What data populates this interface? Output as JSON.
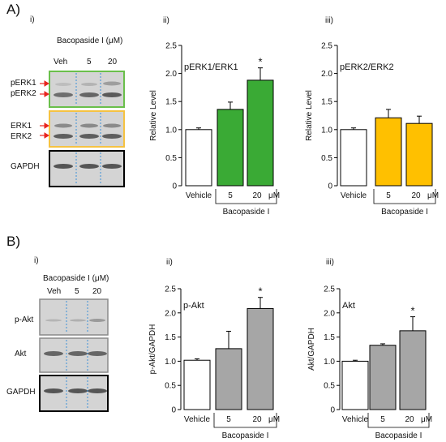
{
  "panels": {
    "A": {
      "label": "A)",
      "blot": {
        "sub": "i)",
        "treatment_label": "Bacopaside I (μM)",
        "lanes": [
          "Veh",
          "5",
          "20"
        ],
        "row_labels": [
          "pERK1",
          "pERK2",
          "ERK1",
          "ERK2",
          "GAPDH"
        ]
      }
    },
    "B": {
      "label": "B)",
      "blot": {
        "sub": "i)",
        "treatment_label": "Bacopaside I (μM)",
        "lanes": [
          "Veh",
          "5",
          "20"
        ],
        "row_labels": [
          "p-Akt",
          "Akt",
          "GAPDH"
        ]
      }
    }
  },
  "colors": {
    "green": "#3aaa35",
    "yellow": "#ffc000",
    "gray": "#a6a6a6",
    "white": "#ffffff",
    "blot_bg": "#d4d4d4",
    "frame_green": "#6abf4b",
    "frame_yellow": "#f5c242",
    "arrow_red": "#e8241f",
    "lane_divider": "#3b8fd9"
  },
  "chart_data": [
    {
      "id": "Aii",
      "sub": "ii)",
      "type": "bar",
      "title": "pERK1/ERK1",
      "ylabel": "Relative Level",
      "categories": [
        "Vehicle",
        "5",
        "20"
      ],
      "unit": "μM",
      "group_label": "Bacopaside I",
      "values": [
        1.0,
        1.36,
        1.88
      ],
      "errors": [
        0.03,
        0.13,
        0.22
      ],
      "fills": [
        "#ffffff",
        "#3aaa35",
        "#3aaa35"
      ],
      "stars": [
        false,
        false,
        true
      ],
      "ylim": [
        0,
        2.5
      ],
      "yticks": [
        "0",
        "0.5",
        "1.0",
        "1.5",
        "2.0",
        "2.5"
      ]
    },
    {
      "id": "Aiii",
      "sub": "iii)",
      "type": "bar",
      "title": "pERK2/ERK2",
      "ylabel": "Relative Level",
      "categories": [
        "Vehicle",
        "5",
        "20"
      ],
      "unit": "μM",
      "group_label": "Bacopaside I",
      "values": [
        1.0,
        1.21,
        1.11
      ],
      "errors": [
        0.03,
        0.15,
        0.13
      ],
      "fills": [
        "#ffffff",
        "#ffc000",
        "#ffc000"
      ],
      "stars": [
        false,
        false,
        false
      ],
      "ylim": [
        0,
        2.5
      ],
      "yticks": [
        "0",
        "0.5",
        "1.0",
        "1.5",
        "2.0",
        "2.5"
      ]
    },
    {
      "id": "Bii",
      "sub": "ii)",
      "type": "bar",
      "title": "p-Akt",
      "ylabel": "p-Akt/GAPDH",
      "categories": [
        "Vehicle",
        "5",
        "20"
      ],
      "unit": "μM",
      "group_label": "Bacopaside I",
      "values": [
        1.02,
        1.26,
        2.09
      ],
      "errors": [
        0.03,
        0.36,
        0.23
      ],
      "fills": [
        "#ffffff",
        "#a6a6a6",
        "#a6a6a6"
      ],
      "stars": [
        false,
        false,
        true
      ],
      "ylim": [
        0,
        2.5
      ],
      "yticks": [
        "0",
        "0.5",
        "1.0",
        "1.5",
        "2.0",
        "2.5"
      ]
    },
    {
      "id": "Biii",
      "sub": "iii)",
      "type": "bar",
      "title": "Akt",
      "ylabel": "Akt/GAPDH",
      "categories": [
        "Vehicle",
        "5",
        "20"
      ],
      "unit": "μM",
      "group_label": "Bacopaside I",
      "values": [
        1.0,
        1.33,
        1.63
      ],
      "errors": [
        0.02,
        0.03,
        0.29
      ],
      "fills": [
        "#ffffff",
        "#a6a6a6",
        "#a6a6a6"
      ],
      "stars": [
        false,
        false,
        true
      ],
      "ylim": [
        0,
        2.5
      ],
      "yticks": [
        "0",
        "0.5",
        "1.0",
        "1.5",
        "2.0",
        "2.5"
      ]
    }
  ]
}
